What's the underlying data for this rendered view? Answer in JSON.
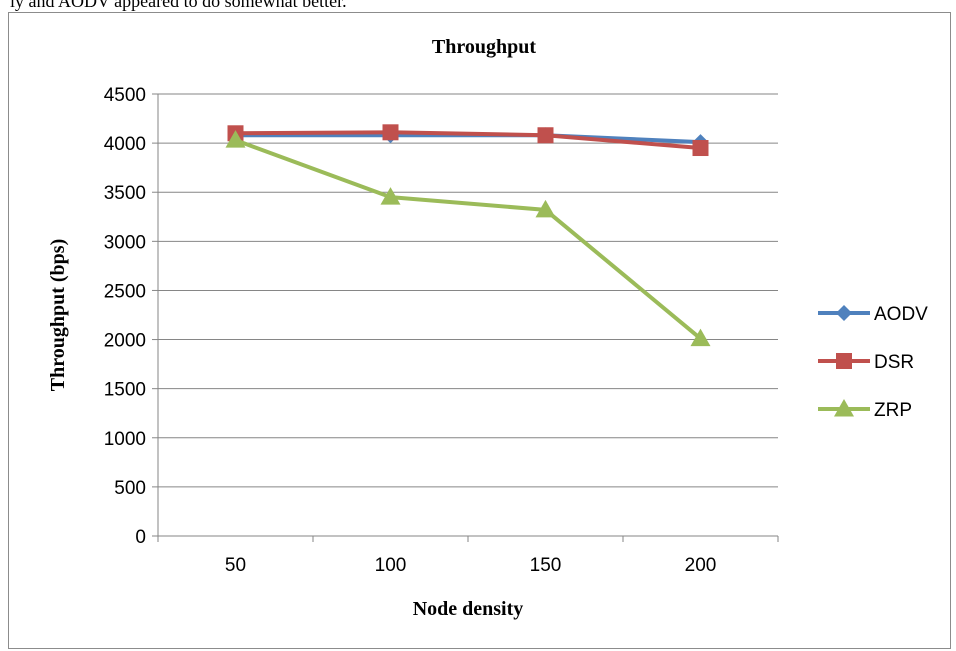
{
  "page": {
    "top_text": "ly and AODV appeared to do somewhat better."
  },
  "chart_data": {
    "type": "line",
    "title": "Throughput",
    "xlabel": "Node density",
    "ylabel": "Throughput (bps)",
    "categories": [
      "50",
      "100",
      "150",
      "200"
    ],
    "ylim": [
      0,
      4500
    ],
    "yticks": [
      0,
      500,
      1000,
      1500,
      2000,
      2500,
      3000,
      3500,
      4000,
      4500
    ],
    "grid": true,
    "legend_position": "right",
    "series": [
      {
        "name": "AODV",
        "color": "#4f81bd",
        "marker": "diamond",
        "values": [
          4080,
          4080,
          4080,
          4010
        ]
      },
      {
        "name": "DSR",
        "color": "#c0504d",
        "marker": "square",
        "values": [
          4100,
          4110,
          4080,
          3950
        ]
      },
      {
        "name": "ZRP",
        "color": "#9bbb59",
        "marker": "triangle",
        "values": [
          4030,
          3450,
          3320,
          2010
        ]
      }
    ]
  }
}
